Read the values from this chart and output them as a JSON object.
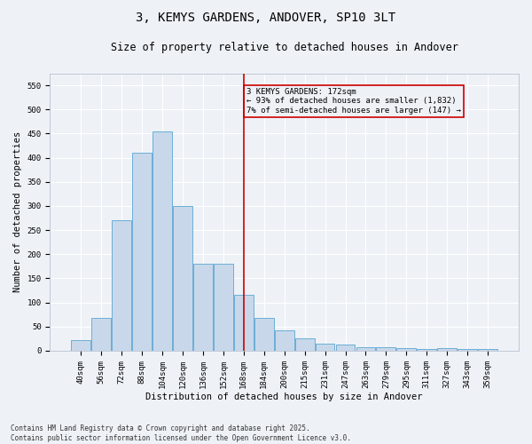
{
  "title_line1": "3, KEMYS GARDENS, ANDOVER, SP10 3LT",
  "title_line2": "Size of property relative to detached houses in Andover",
  "xlabel": "Distribution of detached houses by size in Andover",
  "ylabel": "Number of detached properties",
  "categories": [
    "40sqm",
    "56sqm",
    "72sqm",
    "88sqm",
    "104sqm",
    "120sqm",
    "136sqm",
    "152sqm",
    "168sqm",
    "184sqm",
    "200sqm",
    "215sqm",
    "231sqm",
    "247sqm",
    "263sqm",
    "279sqm",
    "295sqm",
    "311sqm",
    "327sqm",
    "343sqm",
    "359sqm"
  ],
  "values": [
    22,
    68,
    270,
    410,
    455,
    300,
    180,
    180,
    115,
    68,
    43,
    25,
    15,
    12,
    7,
    7,
    5,
    4,
    5,
    4,
    3
  ],
  "bar_color": "#c8d8ea",
  "bar_edge_color": "#6baed6",
  "vline_color": "#cc0000",
  "annotation_text": "3 KEMYS GARDENS: 172sqm\n← 93% of detached houses are smaller (1,832)\n7% of semi-detached houses are larger (147) →",
  "annotation_box_color": "#cc0000",
  "ylim": [
    0,
    575
  ],
  "yticks": [
    0,
    50,
    100,
    150,
    200,
    250,
    300,
    350,
    400,
    450,
    500,
    550
  ],
  "footnote": "Contains HM Land Registry data © Crown copyright and database right 2025.\nContains public sector information licensed under the Open Government Licence v3.0.",
  "bg_color": "#eef2f7",
  "grid_color": "#ffffff",
  "title_fontsize": 10,
  "subtitle_fontsize": 8.5,
  "axis_label_fontsize": 7.5,
  "tick_fontsize": 6.5,
  "annotation_fontsize": 6.5,
  "footnote_fontsize": 5.5
}
